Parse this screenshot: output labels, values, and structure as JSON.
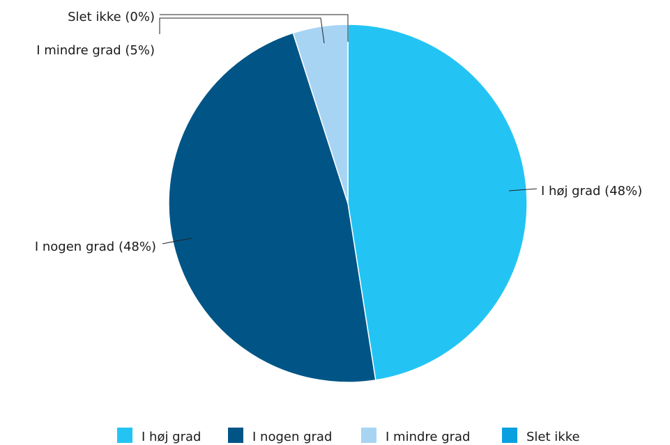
{
  "chart_data": {
    "type": "pie",
    "title": "",
    "categories": [
      "I høj grad",
      "I nogen grad",
      "I mindre grad",
      "Slet ikke"
    ],
    "values": [
      48,
      48,
      5,
      0
    ],
    "callout_labels": [
      "I høj grad (48%)",
      "I nogen grad (48%)",
      "I mindre grad (5%)",
      "Slet ikke (0%)"
    ],
    "colors": [
      "#23c4f4",
      "#005586",
      "#a8d4f4",
      "#0aa0e0"
    ],
    "legend": {
      "position": "bottom",
      "items": [
        "I høj grad",
        "I nogen grad",
        "I mindre grad",
        "Slet ikke"
      ]
    }
  }
}
